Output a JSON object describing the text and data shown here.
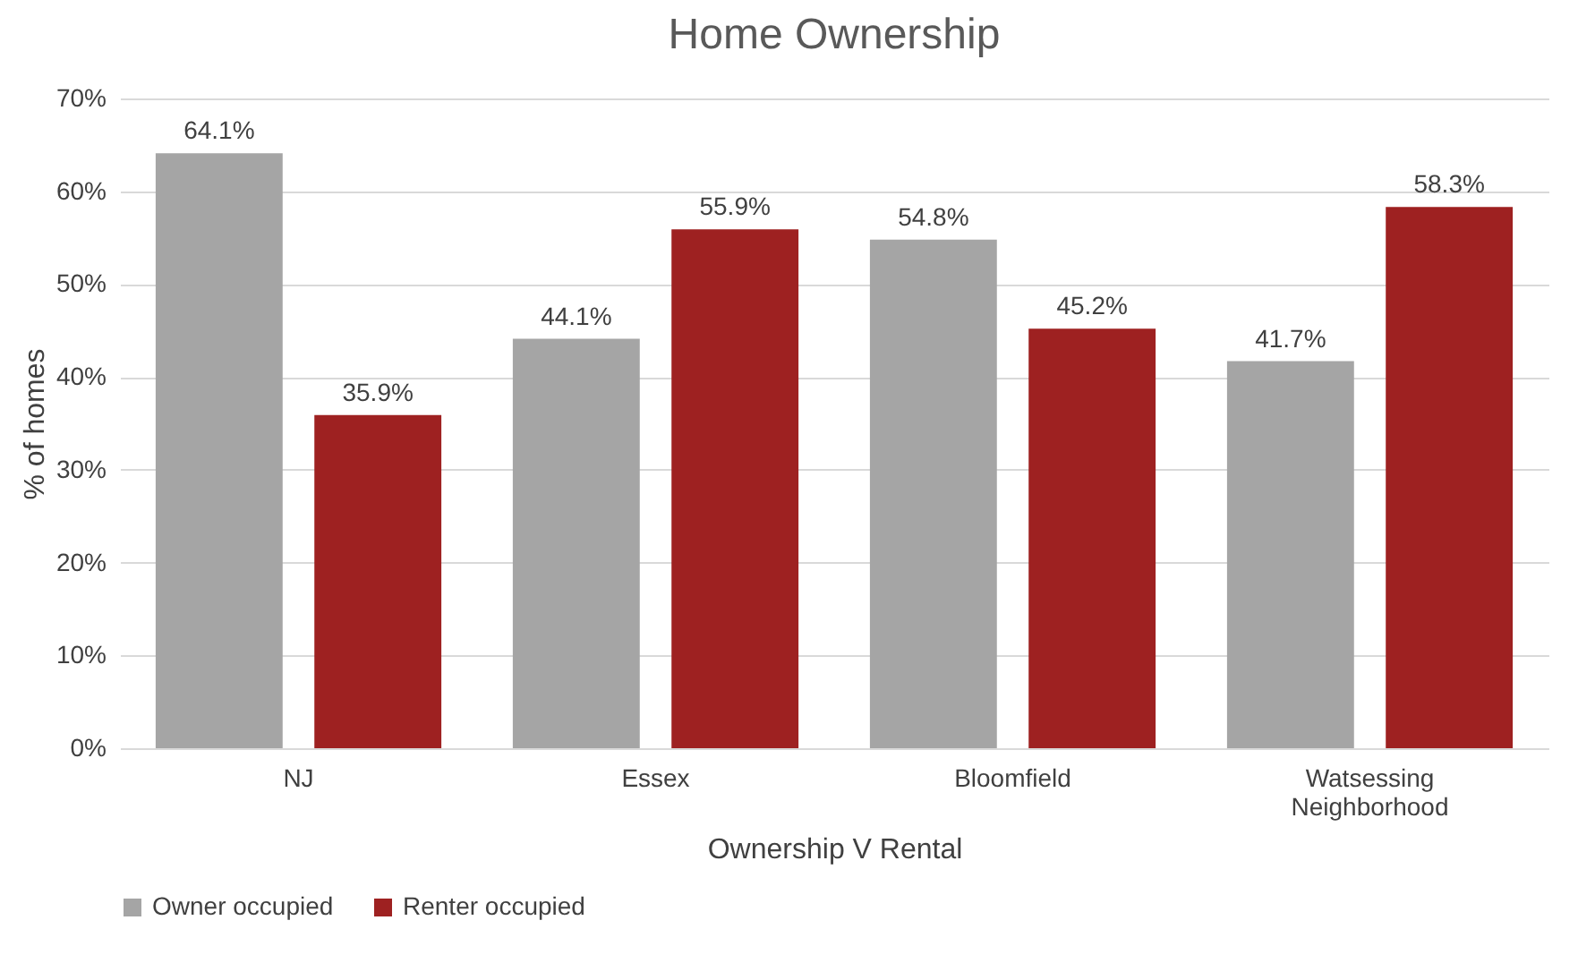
{
  "chart_data": {
    "type": "bar",
    "title": "Home Ownership",
    "xlabel": "Ownership V Rental",
    "ylabel": "% of homes",
    "categories": [
      "NJ",
      "Essex",
      "Bloomfield",
      "Watsessing Neighborhood"
    ],
    "series": [
      {
        "name": "Owner occupied",
        "color": "#a5a5a5",
        "values": [
          64.1,
          44.1,
          54.8,
          41.7
        ],
        "value_labels": [
          "64.1%",
          "44.1%",
          "54.8%",
          "41.7%"
        ]
      },
      {
        "name": "Renter occupied",
        "color": "#9e2121",
        "values": [
          35.9,
          55.9,
          45.2,
          58.3
        ],
        "value_labels": [
          "35.9%",
          "55.9%",
          "45.2%",
          "58.3%"
        ]
      }
    ],
    "ylim": [
      0,
      70
    ],
    "yticks": [
      {
        "value": 0,
        "label": "0%"
      },
      {
        "value": 10,
        "label": "10%"
      },
      {
        "value": 20,
        "label": "20%"
      },
      {
        "value": 30,
        "label": "30%"
      },
      {
        "value": 40,
        "label": "40%"
      },
      {
        "value": 50,
        "label": "50%"
      },
      {
        "value": 60,
        "label": "60%"
      },
      {
        "value": 70,
        "label": "70%"
      }
    ],
    "grid": "y",
    "legend": "bottom"
  }
}
